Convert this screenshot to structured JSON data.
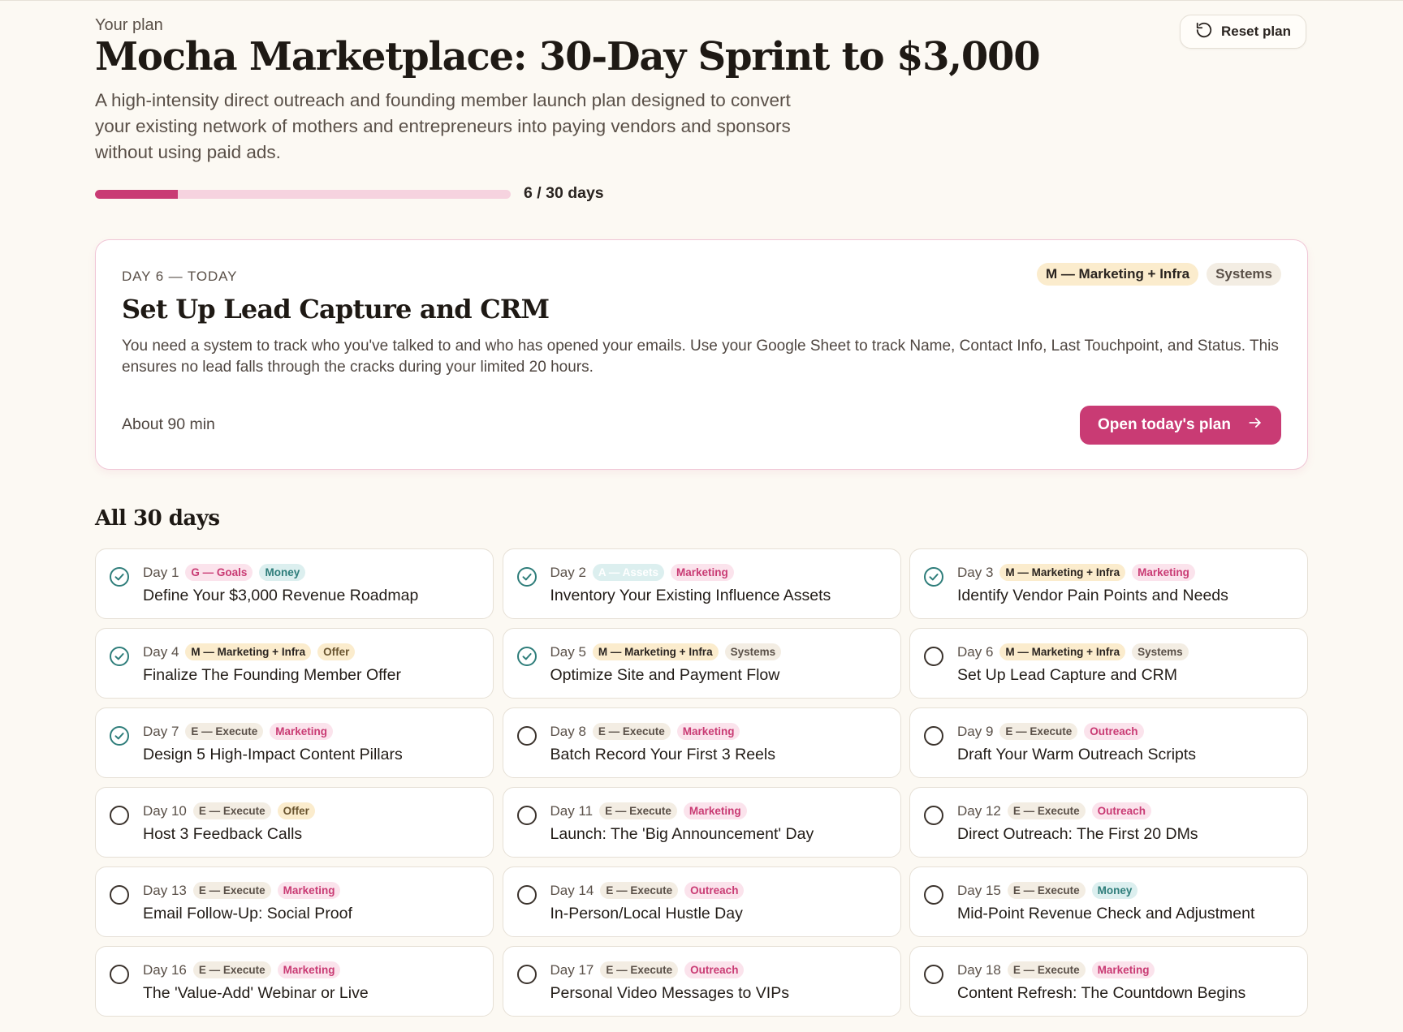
{
  "header": {
    "eyebrow": "Your plan",
    "title": "Mocha Marketplace: 30-Day Sprint to $3,000",
    "description": "A high-intensity direct outreach and founding member launch plan designed to convert your existing network of mothers and entrepreneurs into paying vendors and sponsors without using paid ads.",
    "reset_label": "Reset plan",
    "reset_icon": "reset-icon",
    "progress": {
      "completed": 6,
      "total": 30,
      "label": "6 / 30 days"
    }
  },
  "colors": {
    "accent": "#c93b74",
    "accent_light": "#f6d3df",
    "teal": "#2e7d7a",
    "background": "#fcf9f3"
  },
  "today": {
    "eyebrow": "DAY 6 — TODAY",
    "title": "Set Up Lead Capture and CRM",
    "description": "You need a system to track who you've talked to and who has opened your emails. Use your Google Sheet to track Name, Contact Info, Last Touchpoint, and Status. This ensures no lead falls through the cracks during your limited 20 hours.",
    "duration": "About 90 min",
    "tags": [
      {
        "label": "M — Marketing + Infra",
        "style": "cream"
      },
      {
        "label": "Systems",
        "style": "beige"
      }
    ],
    "button_label": "Open today's plan",
    "button_icon": "arrow-right-icon"
  },
  "all_days": {
    "heading": "All 30 days",
    "days": [
      {
        "label": "Day 1",
        "title": "Define Your $3,000 Revenue Roadmap",
        "done": true,
        "phase": "G — Goals",
        "phase_style": "pinkgoal",
        "category": "Money",
        "category_style": "teal"
      },
      {
        "label": "Day 2",
        "title": "Inventory Your Existing Influence Assets",
        "done": true,
        "phase": "A — Assets",
        "phase_style": "teal-fade",
        "category": "Marketing",
        "category_style": "pink"
      },
      {
        "label": "Day 3",
        "title": "Identify Vendor Pain Points and Needs",
        "done": true,
        "phase": "M — Marketing + Infra",
        "phase_style": "cream",
        "category": "Marketing",
        "category_style": "pink"
      },
      {
        "label": "Day 4",
        "title": "Finalize The Founding Member Offer",
        "done": true,
        "phase": "M — Marketing + Infra",
        "phase_style": "cream",
        "category": "Offer",
        "category_style": "offer"
      },
      {
        "label": "Day 5",
        "title": "Optimize Site and Payment Flow",
        "done": true,
        "phase": "M — Marketing + Infra",
        "phase_style": "cream",
        "category": "Systems",
        "category_style": "beige"
      },
      {
        "label": "Day 6",
        "title": "Set Up Lead Capture and CRM",
        "done": false,
        "phase": "M — Marketing + Infra",
        "phase_style": "cream",
        "category": "Systems",
        "category_style": "beige"
      },
      {
        "label": "Day 7",
        "title": "Design 5 High-Impact Content Pillars",
        "done": true,
        "phase": "E — Execute",
        "phase_style": "beige",
        "category": "Marketing",
        "category_style": "pink"
      },
      {
        "label": "Day 8",
        "title": "Batch Record Your First 3 Reels",
        "done": false,
        "phase": "E — Execute",
        "phase_style": "beige",
        "category": "Marketing",
        "category_style": "pink"
      },
      {
        "label": "Day 9",
        "title": "Draft Your Warm Outreach Scripts",
        "done": false,
        "phase": "E — Execute",
        "phase_style": "beige",
        "category": "Outreach",
        "category_style": "pink"
      },
      {
        "label": "Day 10",
        "title": "Host 3 Feedback Calls",
        "done": false,
        "phase": "E — Execute",
        "phase_style": "beige",
        "category": "Offer",
        "category_style": "offer"
      },
      {
        "label": "Day 11",
        "title": "Launch: The 'Big Announcement' Day",
        "done": false,
        "phase": "E — Execute",
        "phase_style": "beige",
        "category": "Marketing",
        "category_style": "pink"
      },
      {
        "label": "Day 12",
        "title": "Direct Outreach: The First 20 DMs",
        "done": false,
        "phase": "E — Execute",
        "phase_style": "beige",
        "category": "Outreach",
        "category_style": "pink"
      },
      {
        "label": "Day 13",
        "title": "Email Follow-Up: Social Proof",
        "done": false,
        "phase": "E — Execute",
        "phase_style": "beige",
        "category": "Marketing",
        "category_style": "pink"
      },
      {
        "label": "Day 14",
        "title": "In-Person/Local Hustle Day",
        "done": false,
        "phase": "E — Execute",
        "phase_style": "beige",
        "category": "Outreach",
        "category_style": "pink"
      },
      {
        "label": "Day 15",
        "title": "Mid-Point Revenue Check and Adjustment",
        "done": false,
        "phase": "E — Execute",
        "phase_style": "beige",
        "category": "Money",
        "category_style": "teal"
      },
      {
        "label": "Day 16",
        "title": "The 'Value-Add' Webinar or Live",
        "done": false,
        "phase": "E — Execute",
        "phase_style": "beige",
        "category": "Marketing",
        "category_style": "pink"
      },
      {
        "label": "Day 17",
        "title": "Personal Video Messages to VIPs",
        "done": false,
        "phase": "E — Execute",
        "phase_style": "beige",
        "category": "Outreach",
        "category_style": "pink"
      },
      {
        "label": "Day 18",
        "title": "Content Refresh: The Countdown Begins",
        "done": false,
        "phase": "E — Execute",
        "phase_style": "beige",
        "category": "Marketing",
        "category_style": "pink"
      }
    ]
  }
}
